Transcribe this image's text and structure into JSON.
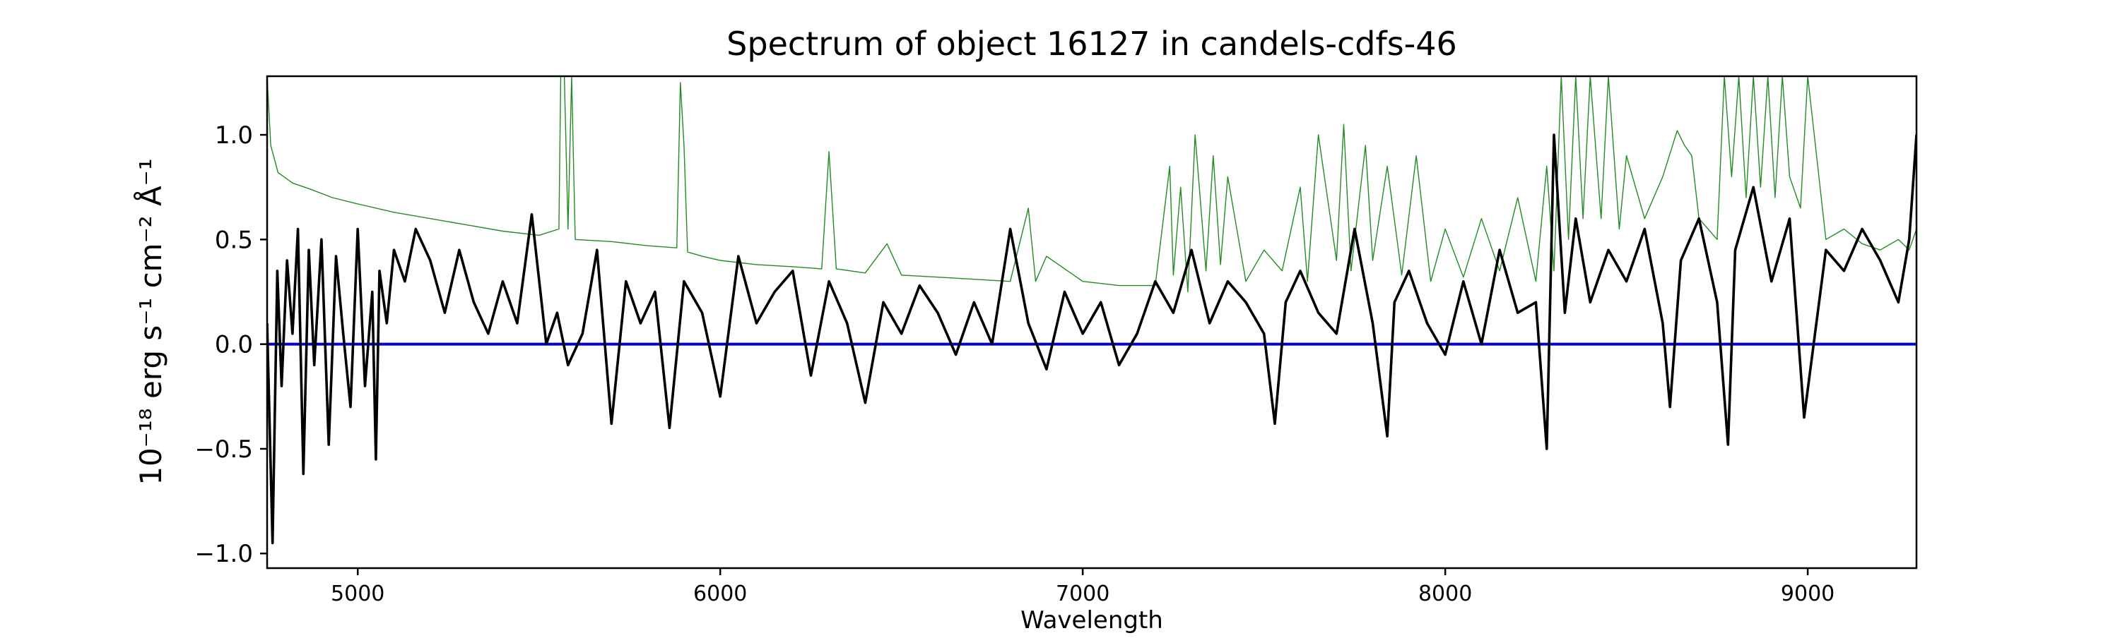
{
  "chart_data": {
    "type": "line",
    "title": "Spectrum of object 16127 in candels-cdfs-46",
    "xlabel": "Wavelength",
    "ylabel": "10⁻¹⁸ erg s⁻¹ cm⁻² Å⁻¹",
    "xlim": [
      4750,
      9300
    ],
    "ylim": [
      -1.07,
      1.28
    ],
    "x_ticks": [
      5000,
      6000,
      7000,
      8000,
      9000
    ],
    "y_ticks": [
      -1.0,
      -0.5,
      0.0,
      0.5,
      1.0
    ],
    "x_tick_labels": [
      "5000",
      "6000",
      "7000",
      "8000",
      "9000"
    ],
    "y_tick_labels": [
      "−1.0",
      "−0.5",
      "0.0",
      "0.5",
      "1.0"
    ],
    "grid": false,
    "colors": {
      "flux": "#000000",
      "noise": "#228b22",
      "zero": "#0000cd"
    },
    "series": [
      {
        "key": "flux",
        "x": [
          4750,
          4765,
          4778,
          4790,
          4805,
          4820,
          4835,
          4850,
          4865,
          4880,
          4900,
          4920,
          4940,
          4960,
          4980,
          5000,
          5020,
          5040,
          5050,
          5060,
          5080,
          5100,
          5130,
          5160,
          5200,
          5240,
          5280,
          5320,
          5360,
          5400,
          5440,
          5480,
          5520,
          5550,
          5580,
          5620,
          5660,
          5700,
          5740,
          5780,
          5820,
          5860,
          5900,
          5950,
          6000,
          6050,
          6100,
          6150,
          6200,
          6250,
          6300,
          6350,
          6400,
          6450,
          6500,
          6550,
          6600,
          6650,
          6700,
          6750,
          6800,
          6850,
          6900,
          6950,
          7000,
          7050,
          7100,
          7150,
          7200,
          7250,
          7300,
          7350,
          7400,
          7450,
          7500,
          7530,
          7560,
          7600,
          7650,
          7700,
          7750,
          7800,
          7840,
          7860,
          7900,
          7950,
          8000,
          8050,
          8100,
          8150,
          8200,
          8250,
          8280,
          8300,
          8330,
          8360,
          8400,
          8450,
          8500,
          8550,
          8600,
          8620,
          8650,
          8700,
          8750,
          8780,
          8800,
          8850,
          8900,
          8950,
          8990,
          9050,
          9100,
          9150,
          9200,
          9250,
          9280,
          9300
        ],
        "y": [
          0.1,
          -0.95,
          0.35,
          -0.2,
          0.4,
          0.05,
          0.55,
          -0.62,
          0.45,
          -0.1,
          0.5,
          -0.48,
          0.42,
          0.05,
          -0.3,
          0.55,
          -0.2,
          0.25,
          -0.55,
          0.35,
          0.1,
          0.45,
          0.3,
          0.55,
          0.4,
          0.15,
          0.45,
          0.2,
          0.05,
          0.3,
          0.1,
          0.62,
          0.0,
          0.15,
          -0.1,
          0.05,
          0.45,
          -0.38,
          0.3,
          0.1,
          0.25,
          -0.4,
          0.3,
          0.15,
          -0.25,
          0.42,
          0.1,
          0.25,
          0.35,
          -0.15,
          0.3,
          0.1,
          -0.28,
          0.2,
          0.05,
          0.28,
          0.15,
          -0.05,
          0.2,
          0.0,
          0.55,
          0.1,
          -0.12,
          0.25,
          0.05,
          0.2,
          -0.1,
          0.05,
          0.3,
          0.15,
          0.45,
          0.1,
          0.3,
          0.2,
          0.05,
          -0.38,
          0.2,
          0.35,
          0.15,
          0.05,
          0.55,
          0.1,
          -0.44,
          0.2,
          0.35,
          0.1,
          -0.05,
          0.3,
          0.0,
          0.45,
          0.15,
          0.2,
          -0.5,
          1.0,
          0.15,
          0.6,
          0.2,
          0.45,
          0.3,
          0.55,
          0.1,
          -0.3,
          0.4,
          0.6,
          0.2,
          -0.48,
          0.45,
          0.75,
          0.3,
          0.6,
          -0.35,
          0.45,
          0.35,
          0.55,
          0.4,
          0.2,
          0.5,
          1.0
        ]
      },
      {
        "key": "noise",
        "x": [
          4750,
          4760,
          4780,
          4820,
          4870,
          4930,
          5000,
          5100,
          5200,
          5300,
          5400,
          5500,
          5555,
          5560,
          5570,
          5580,
          5590,
          5600,
          5700,
          5800,
          5880,
          5890,
          5900,
          5910,
          5950,
          6000,
          6100,
          6200,
          6280,
          6300,
          6320,
          6400,
          6460,
          6500,
          6600,
          6700,
          6800,
          6850,
          6870,
          6900,
          7000,
          7100,
          7200,
          7240,
          7250,
          7270,
          7290,
          7310,
          7340,
          7360,
          7380,
          7400,
          7450,
          7500,
          7550,
          7600,
          7620,
          7650,
          7700,
          7720,
          7740,
          7780,
          7800,
          7840,
          7880,
          7920,
          7960,
          8000,
          8050,
          8100,
          8150,
          8200,
          8250,
          8280,
          8300,
          8320,
          8340,
          8360,
          8380,
          8400,
          8430,
          8450,
          8480,
          8500,
          8550,
          8600,
          8640,
          8660,
          8680,
          8700,
          8750,
          8770,
          8790,
          8810,
          8830,
          8850,
          8870,
          8890,
          8910,
          8930,
          8950,
          8980,
          9000,
          9050,
          9100,
          9150,
          9200,
          9250,
          9280,
          9300
        ],
        "y": [
          1.28,
          0.95,
          0.82,
          0.77,
          0.74,
          0.7,
          0.67,
          0.63,
          0.6,
          0.57,
          0.54,
          0.52,
          0.55,
          1.28,
          1.28,
          0.55,
          1.28,
          0.5,
          0.49,
          0.47,
          0.46,
          1.25,
          0.95,
          0.44,
          0.42,
          0.4,
          0.38,
          0.37,
          0.36,
          0.92,
          0.36,
          0.34,
          0.48,
          0.33,
          0.32,
          0.31,
          0.3,
          0.65,
          0.3,
          0.42,
          0.3,
          0.28,
          0.28,
          0.85,
          0.33,
          0.75,
          0.25,
          1.0,
          0.35,
          0.9,
          0.38,
          0.8,
          0.3,
          0.45,
          0.35,
          0.75,
          0.3,
          1.0,
          0.4,
          1.05,
          0.35,
          0.95,
          0.4,
          0.85,
          0.33,
          0.9,
          0.3,
          0.55,
          0.32,
          0.6,
          0.35,
          0.7,
          0.3,
          0.85,
          0.35,
          1.28,
          0.5,
          1.28,
          0.6,
          1.28,
          0.6,
          1.28,
          0.55,
          0.9,
          0.6,
          0.8,
          1.02,
          0.95,
          0.9,
          0.6,
          0.5,
          1.28,
          0.8,
          1.28,
          0.7,
          1.28,
          0.75,
          1.28,
          0.7,
          1.28,
          0.8,
          0.65,
          1.28,
          0.5,
          0.55,
          0.48,
          0.45,
          0.5,
          0.45,
          0.55
        ]
      },
      {
        "key": "zero",
        "x": [
          4750,
          9300
        ],
        "y": [
          0,
          0
        ]
      }
    ]
  }
}
